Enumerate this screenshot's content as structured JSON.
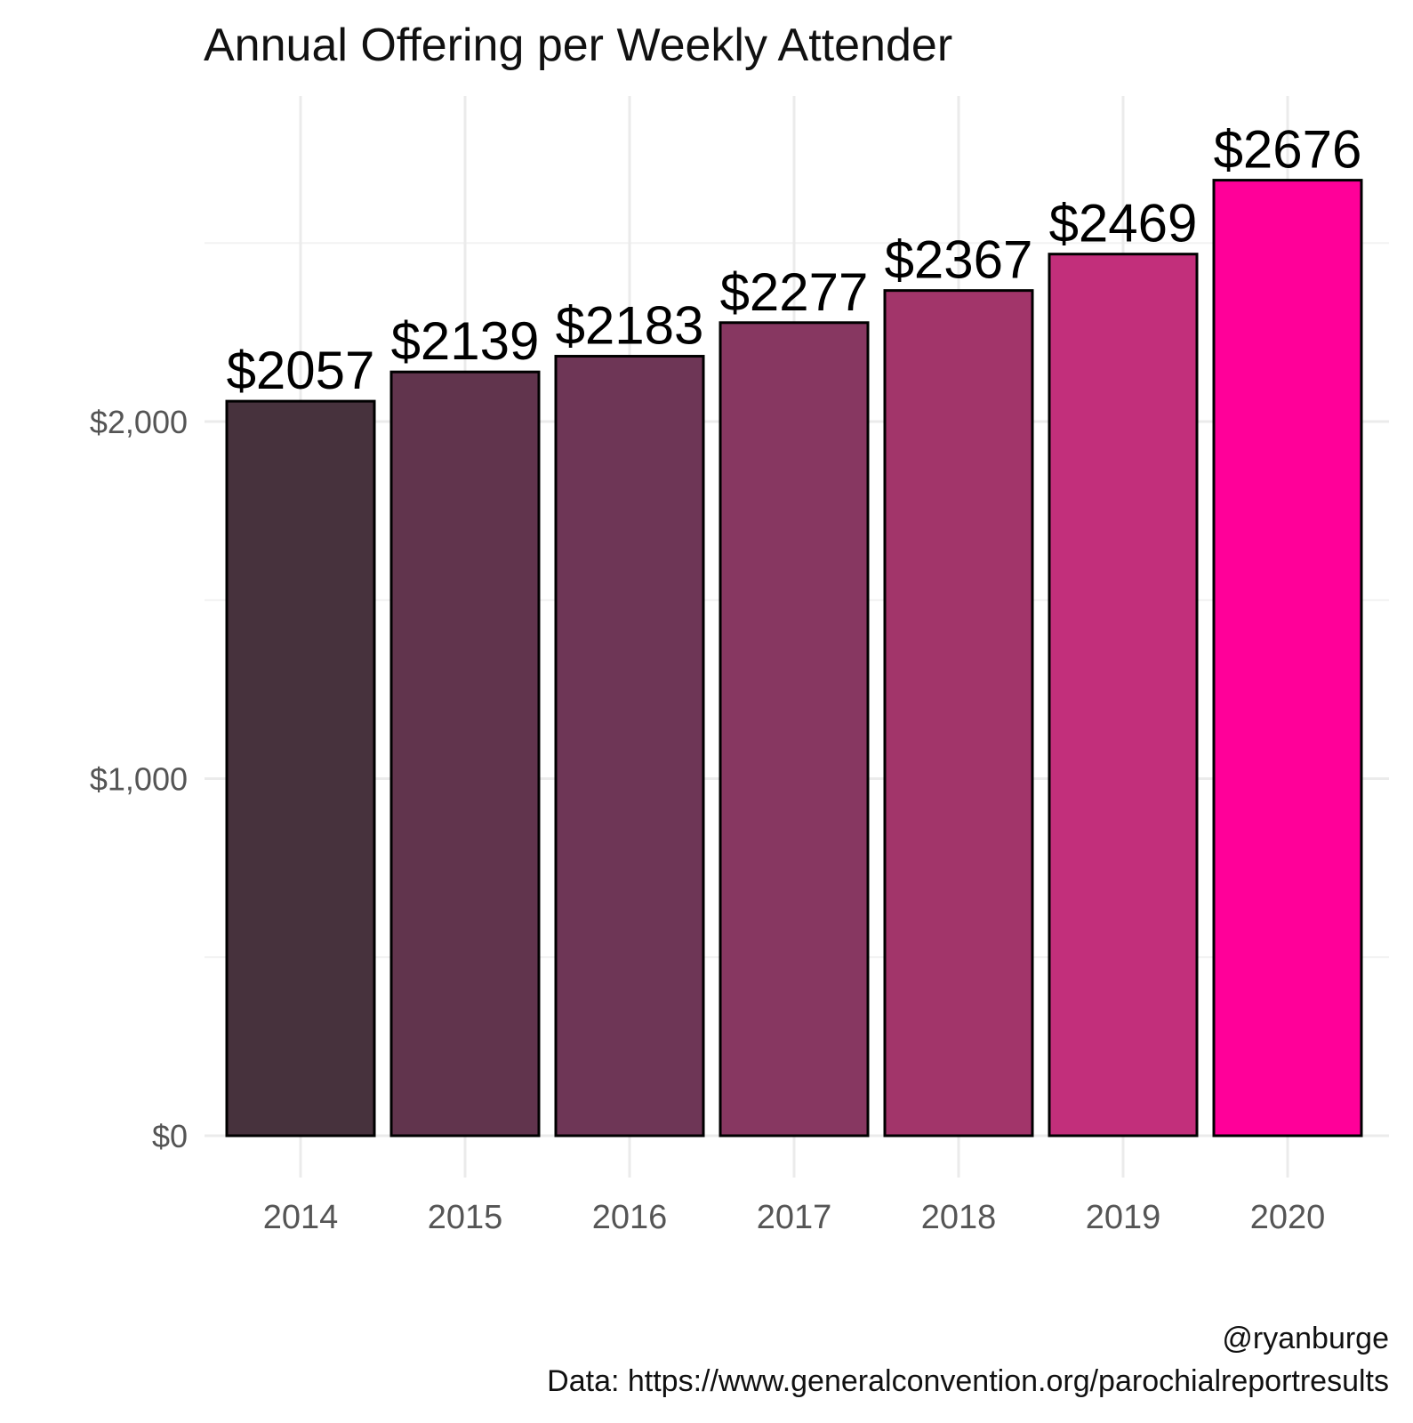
{
  "chart_data": {
    "type": "bar",
    "title": "Annual Offering per Weekly Attender",
    "xlabel": "",
    "ylabel": "",
    "categories": [
      "2014",
      "2015",
      "2016",
      "2017",
      "2018",
      "2019",
      "2020"
    ],
    "values": [
      2057,
      2139,
      2183,
      2277,
      2367,
      2469,
      2676
    ],
    "value_labels": [
      "$2057",
      "$2139",
      "$2183",
      "$2277",
      "$2367",
      "$2469",
      "$2676"
    ],
    "bar_colors": [
      "#47323d",
      "#61344d",
      "#6e3656",
      "#873761",
      "#a2356a",
      "#c22f7b",
      "#ff0099"
    ],
    "ylim": [
      0,
      2900
    ],
    "y_ticks": [
      0,
      1000,
      2000
    ],
    "y_tick_labels": [
      "$0",
      "$1,000",
      "$2,000"
    ],
    "grid": true,
    "legend": "none"
  },
  "caption": {
    "author": "@ryanburge",
    "source": "Data: https://www.generalconvention.org/parochialreportresults"
  }
}
